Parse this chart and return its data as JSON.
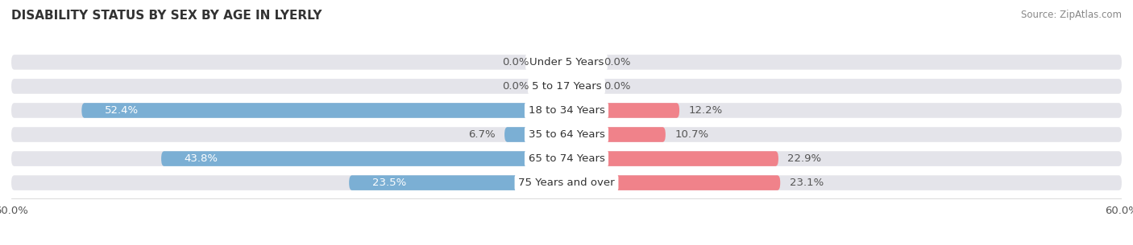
{
  "title": "DISABILITY STATUS BY SEX BY AGE IN LYERLY",
  "source": "Source: ZipAtlas.com",
  "categories": [
    "Under 5 Years",
    "5 to 17 Years",
    "18 to 34 Years",
    "35 to 64 Years",
    "65 to 74 Years",
    "75 Years and over"
  ],
  "male_values": [
    0.0,
    0.0,
    52.4,
    6.7,
    43.8,
    23.5
  ],
  "female_values": [
    0.0,
    0.0,
    12.2,
    10.7,
    22.9,
    23.1
  ],
  "male_color": "#7bafd4",
  "female_color": "#f0828a",
  "male_color_light": "#c2d9ec",
  "female_color_light": "#f7bcc0",
  "bar_bg_color": "#e4e4ea",
  "axis_limit": 60.0,
  "bar_height": 0.62,
  "label_fontsize": 9.5,
  "title_fontsize": 11,
  "source_fontsize": 8.5,
  "bar_gap": 0.15
}
